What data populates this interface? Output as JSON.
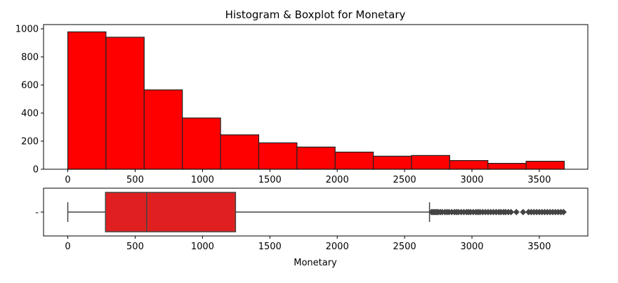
{
  "chart_data": [
    {
      "type": "bar",
      "subtype": "histogram",
      "title": "Histogram & Boxplot for Monetary",
      "xlabel": "",
      "ylabel": "",
      "bin_edges": [
        0,
        283.5,
        567,
        850.5,
        1134,
        1417.5,
        1701,
        1984.5,
        2268,
        2551.5,
        2835,
        3118.5,
        3402,
        3685.5
      ],
      "values": [
        978,
        940,
        565,
        365,
        245,
        188,
        158,
        122,
        93,
        98,
        62,
        42,
        57
      ],
      "xlim": [
        -180,
        3860
      ],
      "ylim": [
        0,
        1030
      ],
      "xticks": [
        0,
        500,
        1000,
        1500,
        2000,
        2500,
        3000,
        3500
      ],
      "yticks": [
        0,
        200,
        400,
        600,
        800,
        1000
      ],
      "grid": false,
      "colors": {
        "fill": "#ff0000",
        "edge": "#222222"
      }
    },
    {
      "type": "boxplot",
      "xlabel": "Monetary",
      "ylabel": "",
      "ytick_labels": [
        "-"
      ],
      "min": 0,
      "q1": 280,
      "median": 585,
      "q3": 1245,
      "whisker_high": 2685,
      "outliers": [
        2700,
        2710,
        2720,
        2730,
        2740,
        2750,
        2765,
        2780,
        2800,
        2815,
        2830,
        2850,
        2870,
        2885,
        2900,
        2920,
        2940,
        2960,
        2975,
        2990,
        3010,
        3030,
        3045,
        3060,
        3080,
        3100,
        3120,
        3140,
        3160,
        3180,
        3200,
        3215,
        3235,
        3250,
        3270,
        3290,
        3330,
        3380,
        3420,
        3440,
        3460,
        3480,
        3500,
        3520,
        3540,
        3560,
        3580,
        3600,
        3620,
        3640,
        3660,
        3680
      ],
      "xlim": [
        -180,
        3860
      ],
      "xticks": [
        0,
        500,
        1000,
        1500,
        2000,
        2500,
        3000,
        3500
      ],
      "grid": false,
      "colors": {
        "box": "#e02020",
        "line": "#444444",
        "outlier": "#444444"
      }
    }
  ]
}
